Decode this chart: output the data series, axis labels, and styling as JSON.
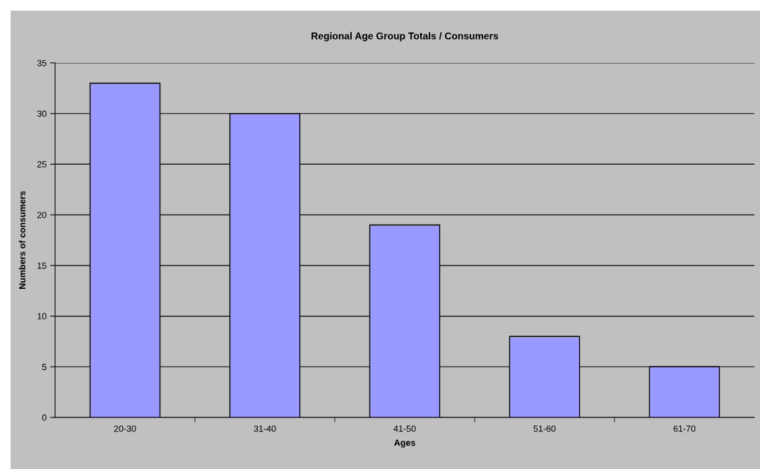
{
  "chart_data": {
    "type": "bar",
    "title": "Regional Age Group Totals / Consumers",
    "xlabel": "Ages",
    "ylabel": "Numbers of consumers",
    "categories": [
      "20-30",
      "31-40",
      "41-50",
      "51-60",
      "61-70"
    ],
    "values": [
      33,
      30,
      19,
      8,
      5
    ],
    "color": "#9999ff",
    "ylim": [
      0,
      35
    ],
    "yticks": [
      0,
      5,
      10,
      15,
      20,
      25,
      30,
      35
    ],
    "grid": "y"
  }
}
